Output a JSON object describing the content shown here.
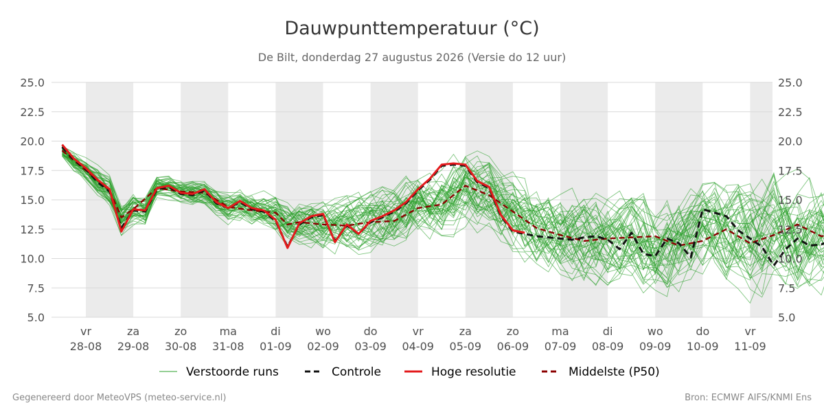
{
  "chart_data": {
    "type": "line",
    "title": "Dauwpunttemperatuur (°C)",
    "subtitle": "De Bilt, donderdag 27 augustus 2026 (Versie do 12 uur)",
    "ylim": [
      5.0,
      25.0
    ],
    "yticks": [
      "5.0",
      "7.5",
      "10.0",
      "12.5",
      "15.0",
      "17.5",
      "20.0",
      "22.5",
      "25.0"
    ],
    "grid": true,
    "legend_placement": "bottom-center",
    "xticks": [
      {
        "day": "vr",
        "date": "28-08"
      },
      {
        "day": "za",
        "date": "29-08"
      },
      {
        "day": "zo",
        "date": "30-08"
      },
      {
        "day": "ma",
        "date": "31-08"
      },
      {
        "day": "di",
        "date": "01-09"
      },
      {
        "day": "wo",
        "date": "02-09"
      },
      {
        "day": "do",
        "date": "03-09"
      },
      {
        "day": "vr",
        "date": "04-09"
      },
      {
        "day": "za",
        "date": "05-09"
      },
      {
        "day": "zo",
        "date": "06-09"
      },
      {
        "day": "ma",
        "date": "07-09"
      },
      {
        "day": "di",
        "date": "08-09"
      },
      {
        "day": "wo",
        "date": "09-09"
      },
      {
        "day": "do",
        "date": "10-09"
      },
      {
        "day": "vr",
        "date": "11-09"
      }
    ],
    "legend": [
      {
        "key": "ens",
        "label": "Verstoorde runs",
        "color": "#2ca02c",
        "style": "thin"
      },
      {
        "key": "ctrl",
        "label": "Controle",
        "color": "#111111",
        "style": "dashed"
      },
      {
        "key": "hres",
        "label": "Hoge resolutie",
        "color": "#e31a1c",
        "style": "solid"
      },
      {
        "key": "p50",
        "label": "Middelste (P50)",
        "color": "#8b0000",
        "style": "dashed"
      }
    ],
    "x_unit": "days after 27-08 00:00",
    "series": [
      {
        "name": "Hoge resolutie",
        "color": "#e31a1c",
        "x": [
          0.5,
          0.75,
          1.0,
          1.25,
          1.5,
          1.75,
          2.0,
          2.25,
          2.5,
          2.75,
          3.0,
          3.25,
          3.5,
          3.75,
          4.0,
          4.25,
          4.5,
          4.75,
          5.0,
          5.25,
          5.5,
          5.75,
          6.0,
          6.25,
          6.5,
          6.75,
          7.0,
          7.25,
          7.5,
          7.75,
          8.0,
          8.25,
          8.5,
          8.75,
          9.0,
          9.25,
          9.5,
          9.75,
          10.0,
          10.25
        ],
        "values": [
          19.7,
          18.5,
          17.7,
          16.7,
          15.9,
          12.3,
          14.2,
          14.1,
          16.0,
          16.2,
          15.6,
          15.5,
          15.9,
          14.8,
          14.3,
          14.9,
          14.3,
          14.1,
          13.3,
          10.9,
          13.0,
          13.6,
          13.8,
          11.4,
          12.9,
          12.1,
          13.2,
          13.6,
          14.1,
          14.8,
          15.9,
          16.8,
          18.0,
          18.1,
          18.0,
          16.6,
          16.1,
          13.7,
          12.4,
          12.2
        ]
      },
      {
        "name": "Controle",
        "color": "#111111",
        "x": [
          0.5,
          0.75,
          1.0,
          1.25,
          1.5,
          1.75,
          2.0,
          2.25,
          2.5,
          2.75,
          3.0,
          3.25,
          3.5,
          3.75,
          4.0,
          4.25,
          4.5,
          4.75,
          5.0,
          5.25,
          5.5,
          5.75,
          6.0,
          6.25,
          6.5,
          6.75,
          7.0,
          7.25,
          7.5,
          7.75,
          8.0,
          8.25,
          8.5,
          8.75,
          9.0,
          9.25,
          9.5,
          9.75,
          10.0,
          10.25,
          10.5,
          10.75,
          11.0,
          11.25,
          11.5,
          11.75,
          12.0,
          12.25,
          12.5,
          12.75,
          13.0,
          13.25,
          13.5,
          13.75,
          14.0,
          14.25,
          14.5,
          14.75,
          15.0,
          15.25,
          15.5,
          15.75,
          16.0,
          16.25,
          16.5,
          16.75,
          17.0,
          17.25,
          17.5,
          17.75,
          18.0,
          18.25
        ],
        "values": [
          19.5,
          18.4,
          17.6,
          16.5,
          15.7,
          12.6,
          14.1,
          14.0,
          15.9,
          16.1,
          15.5,
          15.4,
          15.8,
          14.7,
          14.3,
          14.8,
          14.2,
          14.0,
          13.2,
          11.0,
          12.9,
          13.5,
          13.7,
          11.5,
          12.8,
          12.1,
          13.1,
          13.5,
          14.0,
          14.7,
          15.8,
          16.7,
          17.9,
          18.0,
          17.9,
          16.5,
          16.0,
          13.6,
          12.3,
          12.1,
          11.9,
          11.8,
          11.7,
          11.6,
          11.8,
          11.9,
          11.6,
          10.8,
          12.2,
          10.4,
          10.2,
          11.7,
          11.3,
          10.1,
          14.2,
          13.9,
          13.6,
          12.4,
          11.7,
          11.0,
          9.4,
          10.8,
          11.7,
          11.1,
          11.2,
          11.6,
          11.3,
          11.0,
          11.2,
          11.4,
          11.1,
          11.2
        ]
      },
      {
        "name": "Middelste (P50)",
        "color": "#8b0000",
        "x": [
          0.5,
          1.0,
          1.5,
          1.75,
          2.0,
          2.5,
          3.0,
          3.5,
          4.0,
          4.5,
          5.0,
          5.25,
          5.5,
          6.0,
          6.5,
          7.0,
          7.5,
          8.0,
          8.5,
          9.0,
          9.5,
          10.0,
          10.5,
          11.0,
          11.5,
          12.0,
          12.5,
          13.0,
          13.5,
          14.0,
          14.5,
          15.0,
          15.5,
          16.0,
          16.5,
          17.0,
          17.5,
          18.0,
          18.25
        ],
        "values": [
          19.2,
          17.5,
          15.8,
          13.5,
          14.2,
          16.0,
          15.7,
          15.6,
          14.4,
          14.1,
          13.9,
          12.9,
          13.1,
          12.9,
          12.8,
          13.1,
          13.2,
          14.3,
          14.6,
          16.2,
          15.4,
          14.0,
          12.6,
          12.0,
          11.5,
          11.7,
          11.8,
          11.9,
          11.1,
          11.5,
          12.5,
          11.3,
          12.0,
          12.9,
          11.9,
          12.1,
          12.8,
          11.9,
          12.0
        ]
      }
    ],
    "ensemble": {
      "name": "Verstoorde runs",
      "color": "#2ca02c",
      "members": 50,
      "x_start": 0.5,
      "x_step": 0.25,
      "median": [
        19.2,
        18.3,
        17.5,
        16.6,
        15.8,
        13.3,
        14.2,
        14.0,
        16.0,
        16.0,
        15.7,
        15.6,
        15.6,
        14.9,
        14.4,
        14.6,
        14.3,
        14.1,
        13.9,
        13.0,
        13.1,
        13.0,
        12.8,
        12.7,
        12.8,
        12.9,
        13.1,
        13.2,
        13.2,
        13.8,
        14.3,
        14.4,
        14.6,
        15.4,
        16.2,
        15.8,
        15.4,
        14.6,
        14.0,
        13.2,
        12.6,
        12.3,
        12.0,
        11.8,
        11.5,
        11.6,
        11.7,
        11.8,
        11.9,
        11.4,
        11.1,
        11.3,
        11.5,
        11.7,
        12.5,
        12.3,
        12.0,
        11.9,
        11.3,
        11.5,
        12.5,
        12.3,
        11.9,
        11.9,
        12.0,
        12.3,
        12.9,
        12.5,
        11.9,
        12.0,
        12.0,
        12.0
      ],
      "spread": [
        0.6,
        0.7,
        0.8,
        0.9,
        1.0,
        1.1,
        1.0,
        0.9,
        0.7,
        0.7,
        0.7,
        0.8,
        0.8,
        0.9,
        1.0,
        1.0,
        1.1,
        1.2,
        1.3,
        1.4,
        1.5,
        1.6,
        1.7,
        1.8,
        1.9,
        2.0,
        2.0,
        2.1,
        2.1,
        2.2,
        2.2,
        2.3,
        2.3,
        2.4,
        2.4,
        2.5,
        2.5,
        2.6,
        2.6,
        2.7,
        2.7,
        2.8,
        2.8,
        2.9,
        2.9,
        3.0,
        3.0,
        3.1,
        3.1,
        3.2,
        3.2,
        3.3,
        3.3,
        3.4,
        3.4,
        3.4,
        3.5,
        3.5,
        3.5,
        3.6,
        3.6,
        3.6,
        3.7,
        3.7,
        3.7,
        3.8,
        3.8,
        3.8,
        3.9,
        3.9,
        3.9,
        4.0
      ]
    }
  },
  "footer": {
    "left": "Gegenereerd door MeteoVPS (meteo-service.nl)",
    "right": "Bron: ECMWF AIFS/KNMI Ens"
  }
}
